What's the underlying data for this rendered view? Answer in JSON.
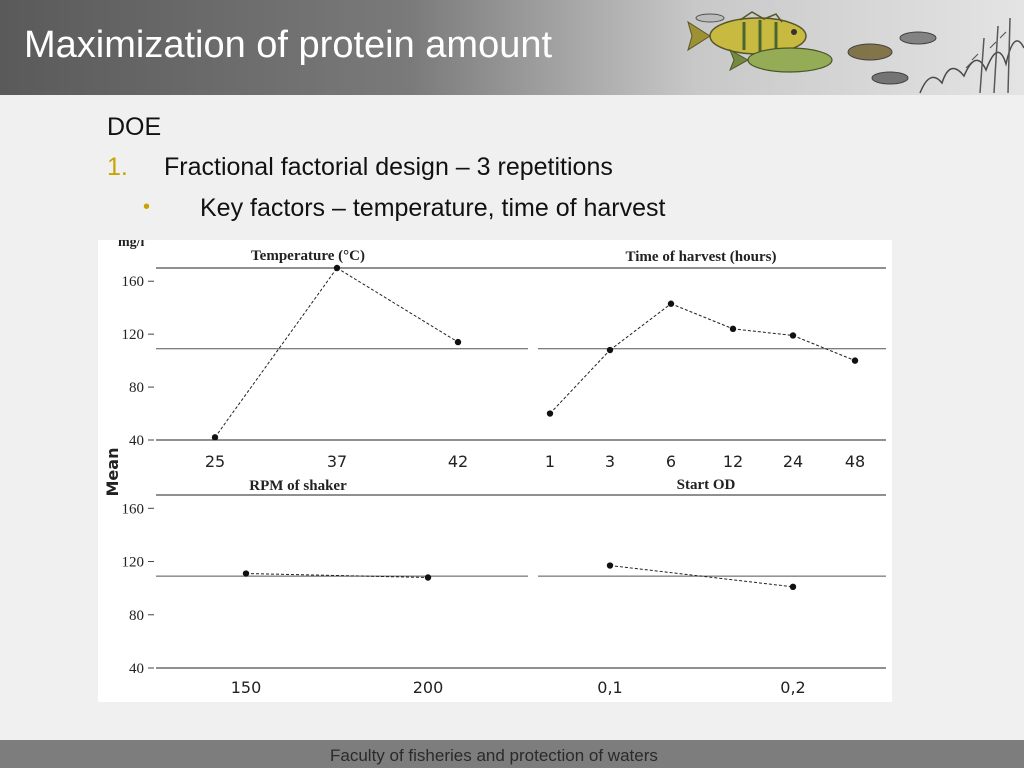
{
  "header": {
    "title": "Maximization of protein amount",
    "banner_icon": "fish-illustration"
  },
  "content": {
    "heading": "DOE",
    "item_number": "1.",
    "item_text": "Fractional factorial design – 3 repetitions",
    "bullet": "•",
    "bullet_text": "Key factors – temperature, time of harvest"
  },
  "footer": {
    "text": "Faculty of fisheries and protection of waters"
  },
  "chart_data": {
    "type": "line",
    "ylabel": "Mean",
    "unit": "mg/l",
    "ylim": [
      40,
      170
    ],
    "yticks": [
      "160",
      "120",
      "80",
      "40"
    ],
    "grid": false,
    "panels": [
      {
        "title": "Temperature (°C)",
        "categories": [
          "25",
          "37",
          "42"
        ],
        "values": [
          42,
          170,
          114
        ],
        "mean": 109
      },
      {
        "title": "Time of harvest (hours)",
        "categories": [
          "1",
          "3",
          "6",
          "12",
          "24",
          "48"
        ],
        "values": [
          60,
          108,
          143,
          124,
          119,
          100
        ],
        "mean": 109
      },
      {
        "title": "RPM of shaker",
        "categories": [
          "150",
          "200"
        ],
        "values": [
          111,
          108
        ],
        "mean": 109
      },
      {
        "title": "Start OD",
        "categories": [
          "0,1",
          "0,2"
        ],
        "values": [
          117,
          101
        ],
        "mean": 109
      }
    ]
  }
}
